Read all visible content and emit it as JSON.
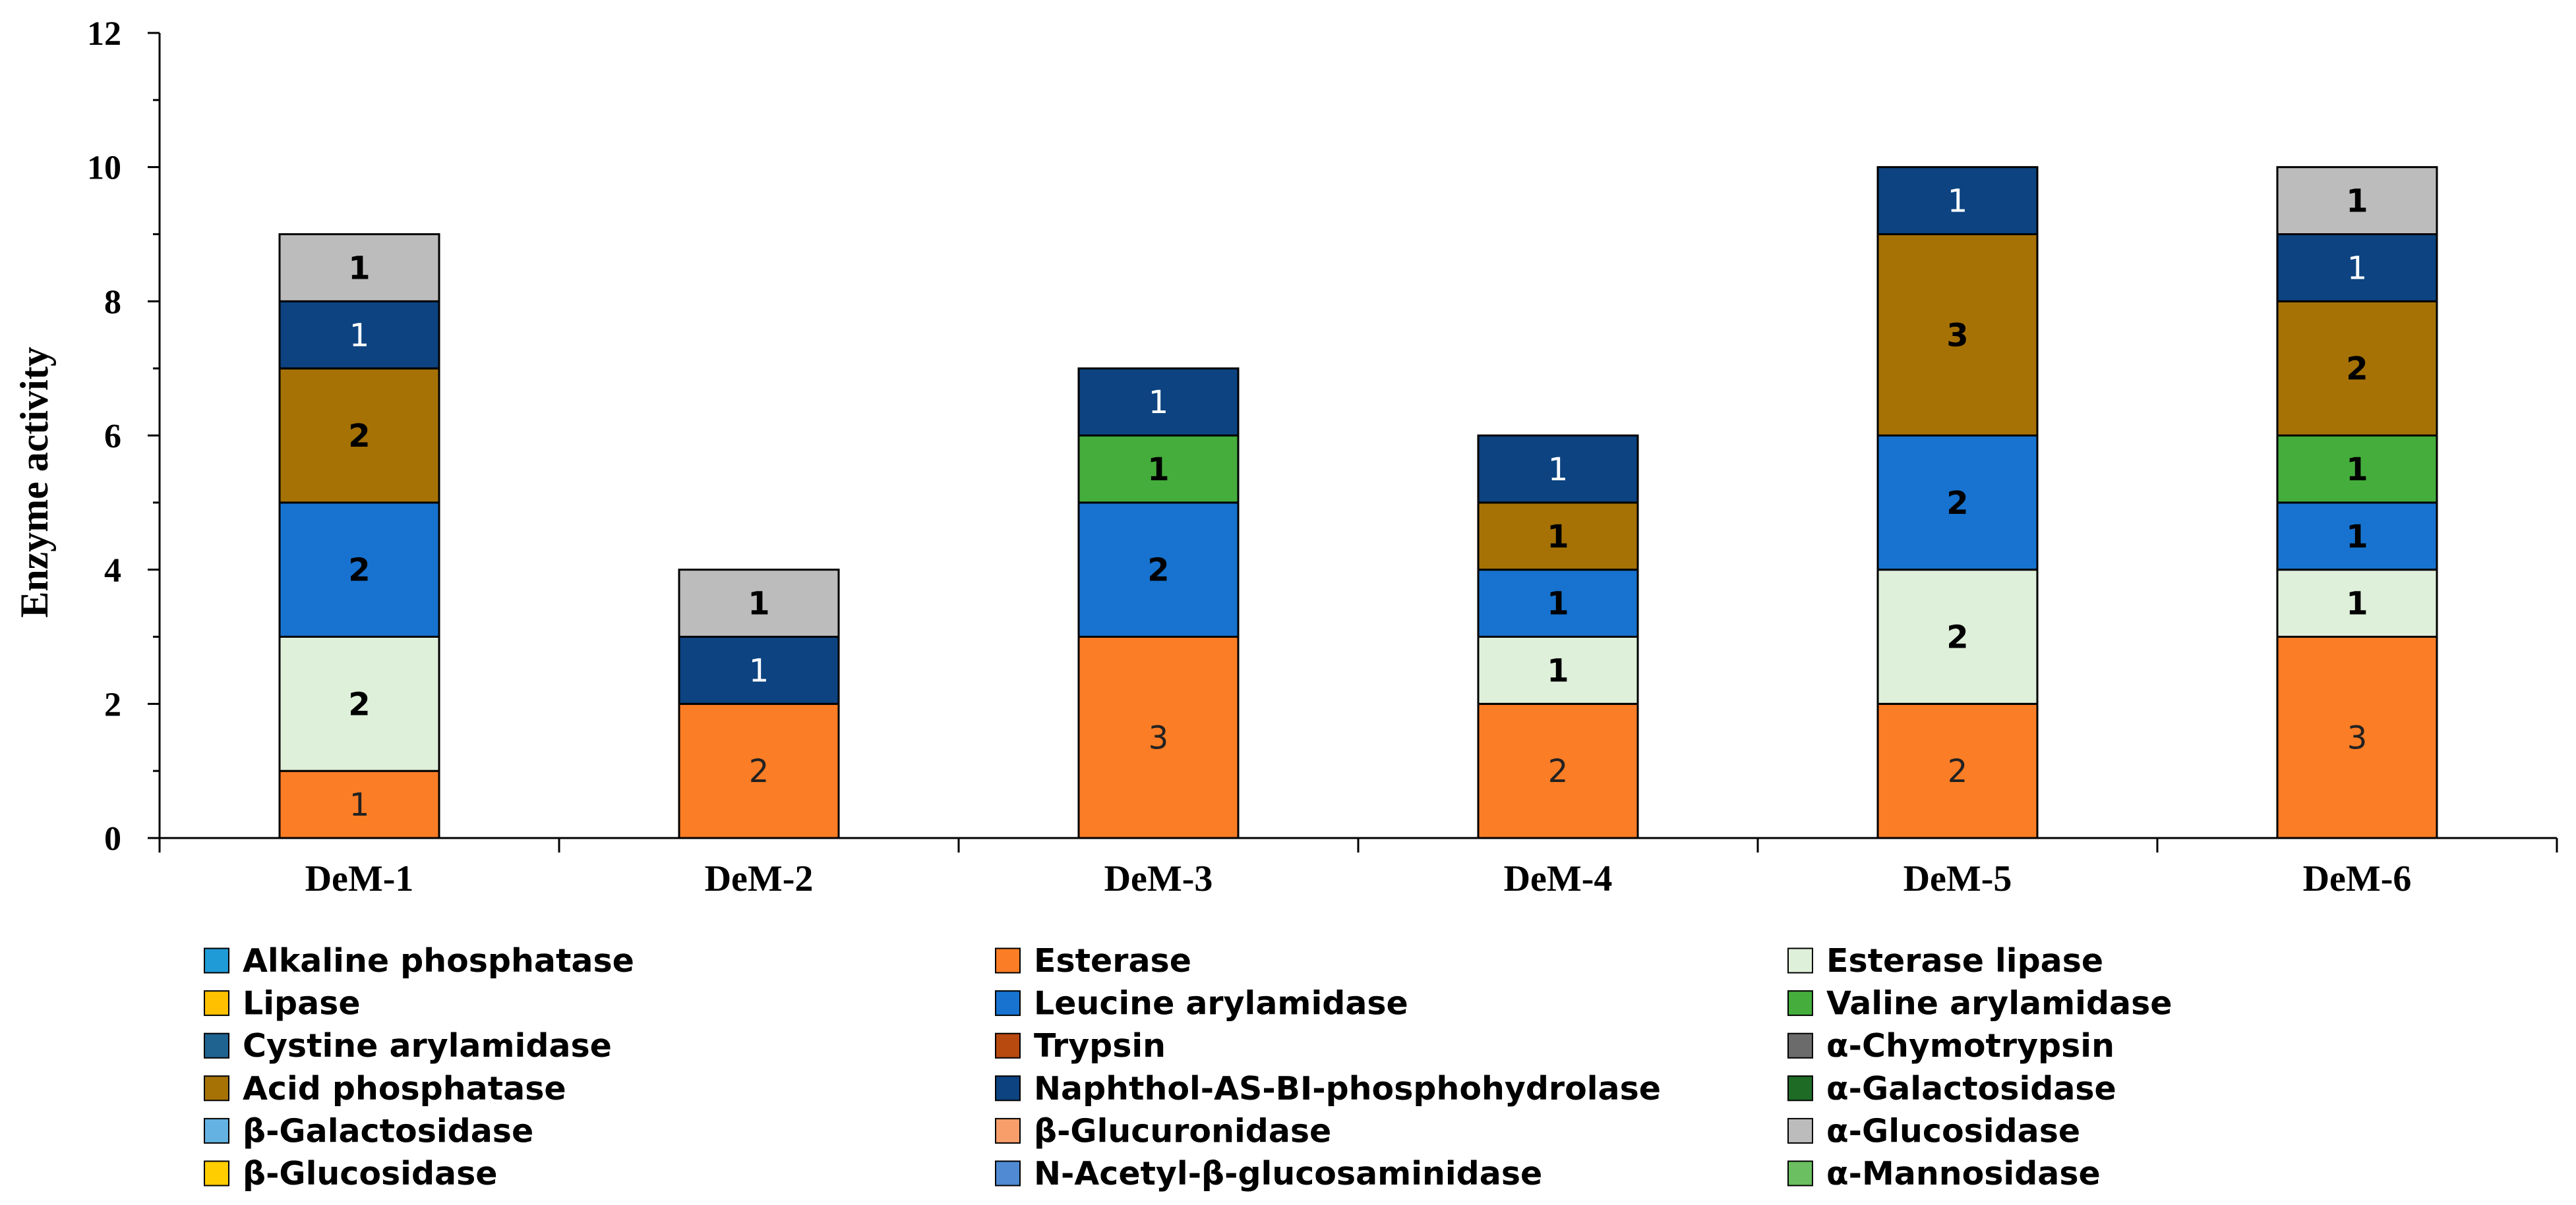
{
  "chart_data": {
    "type": "bar",
    "stacked": true,
    "ylabel": "Enzyme activity",
    "xlabel": "",
    "ylim": [
      0,
      12
    ],
    "ytick_step": 2,
    "grid": false,
    "legend_position": "bottom",
    "categories": [
      "DeM-1",
      "DeM-2",
      "DeM-3",
      "DeM-4",
      "DeM-5",
      "DeM-6"
    ],
    "series": [
      {
        "name": "Alkaline phosphatase",
        "color": "#1f9bd7",
        "label_color": "#000000",
        "label_bold": true,
        "values": [
          0,
          0,
          0,
          0,
          0,
          0
        ]
      },
      {
        "name": "Esterase",
        "color": "#fb7d25",
        "label_color": "#222222",
        "label_bold": false,
        "values": [
          1,
          2,
          3,
          2,
          2,
          3
        ]
      },
      {
        "name": "Esterase lipase",
        "color": "#dff0da",
        "label_color": "#000000",
        "label_bold": true,
        "values": [
          2,
          0,
          0,
          1,
          2,
          1
        ]
      },
      {
        "name": "Lipase",
        "color": "#ffc000",
        "label_color": "#000000",
        "label_bold": true,
        "values": [
          0,
          0,
          0,
          0,
          0,
          0
        ]
      },
      {
        "name": "Leucine arylamidase",
        "color": "#1773cf",
        "label_color": "#000000",
        "label_bold": true,
        "values": [
          2,
          0,
          2,
          1,
          2,
          1
        ]
      },
      {
        "name": "Valine arylamidase",
        "color": "#44ad3c",
        "label_color": "#000000",
        "label_bold": true,
        "values": [
          0,
          0,
          1,
          0,
          0,
          1
        ]
      },
      {
        "name": "Cystine arylamidase",
        "color": "#1f6391",
        "label_color": "#ffffff",
        "label_bold": false,
        "values": [
          0,
          0,
          0,
          0,
          0,
          0
        ]
      },
      {
        "name": "Trypsin",
        "color": "#b84a10",
        "label_color": "#ffffff",
        "label_bold": false,
        "values": [
          0,
          0,
          0,
          0,
          0,
          0
        ]
      },
      {
        "name": "α-Chymotrypsin",
        "color": "#6b6b6b",
        "label_color": "#ffffff",
        "label_bold": false,
        "values": [
          0,
          0,
          0,
          0,
          0,
          0
        ]
      },
      {
        "name": "Acid phosphatase",
        "color": "#a67205",
        "label_color": "#000000",
        "label_bold": true,
        "values": [
          2,
          0,
          0,
          1,
          3,
          2
        ]
      },
      {
        "name": "Naphthol-AS-BI-phosphohydrolase",
        "color": "#0c4380",
        "label_color": "#ffffff",
        "label_bold": false,
        "values": [
          1,
          1,
          1,
          1,
          1,
          1
        ]
      },
      {
        "name": "α-Galactosidase",
        "color": "#1e6b25",
        "label_color": "#ffffff",
        "label_bold": false,
        "values": [
          0,
          0,
          0,
          0,
          0,
          0
        ]
      },
      {
        "name": "β-Galactosidase",
        "color": "#63b2e2",
        "label_color": "#000000",
        "label_bold": true,
        "values": [
          0,
          0,
          0,
          0,
          0,
          0
        ]
      },
      {
        "name": "β-Glucuronidase",
        "color": "#f89e6a",
        "label_color": "#000000",
        "label_bold": true,
        "values": [
          0,
          0,
          0,
          0,
          0,
          0
        ]
      },
      {
        "name": "α-Glucosidase",
        "color": "#bcbcbc",
        "label_color": "#000000",
        "label_bold": true,
        "values": [
          1,
          1,
          0,
          0,
          0,
          1
        ]
      },
      {
        "name": "β-Glucosidase",
        "color": "#ffcd00",
        "label_color": "#000000",
        "label_bold": true,
        "values": [
          0,
          0,
          0,
          0,
          0,
          0
        ]
      },
      {
        "name": "N-Acetyl-β-glucosaminidase",
        "color": "#4f8ad2",
        "label_color": "#000000",
        "label_bold": true,
        "values": [
          0,
          0,
          0,
          0,
          0,
          0
        ]
      },
      {
        "name": "α-Mannosidase",
        "color": "#6bbf60",
        "label_color": "#000000",
        "label_bold": true,
        "values": [
          0,
          0,
          0,
          0,
          0,
          0
        ]
      }
    ]
  }
}
